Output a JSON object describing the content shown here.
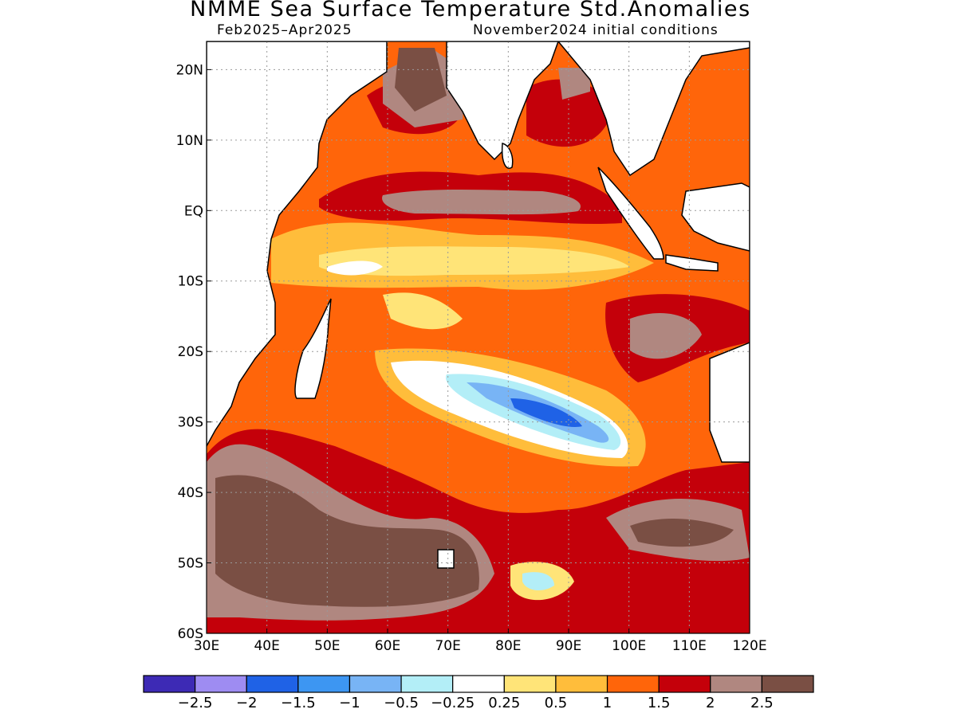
{
  "title": "NMME Sea Surface Temperature Std.Anomalies",
  "subtitle_left": "Feb2025–Apr2025",
  "subtitle_right": "November2024 initial conditions",
  "map": {
    "lon_range": [
      30,
      120
    ],
    "lat_range": [
      -60,
      24
    ],
    "x_tick_labels": [
      "30E",
      "40E",
      "50E",
      "60E",
      "70E",
      "80E",
      "90E",
      "100E",
      "110E",
      "120E"
    ],
    "y_tick_labels": [
      "20N",
      "10N",
      "EQ",
      "10S",
      "20S",
      "30S",
      "40S",
      "50S",
      "60S"
    ],
    "grid": "dotted"
  },
  "colorbar": {
    "colors": [
      "#3d2ab5",
      "#9e8cf2",
      "#1f62e6",
      "#3d96f2",
      "#78b4f5",
      "#b3eef7",
      "#ffffff",
      "#ffe478",
      "#ffbd3b",
      "#ff650a",
      "#c4000a",
      "#b08780",
      "#7a4f44"
    ],
    "labels": [
      "−2.5",
      "−2",
      "−1.5",
      "−1",
      "−0.5",
      "−0.25",
      "0.25",
      "0.5",
      "1",
      "1.5",
      "2",
      "2.5"
    ]
  }
}
